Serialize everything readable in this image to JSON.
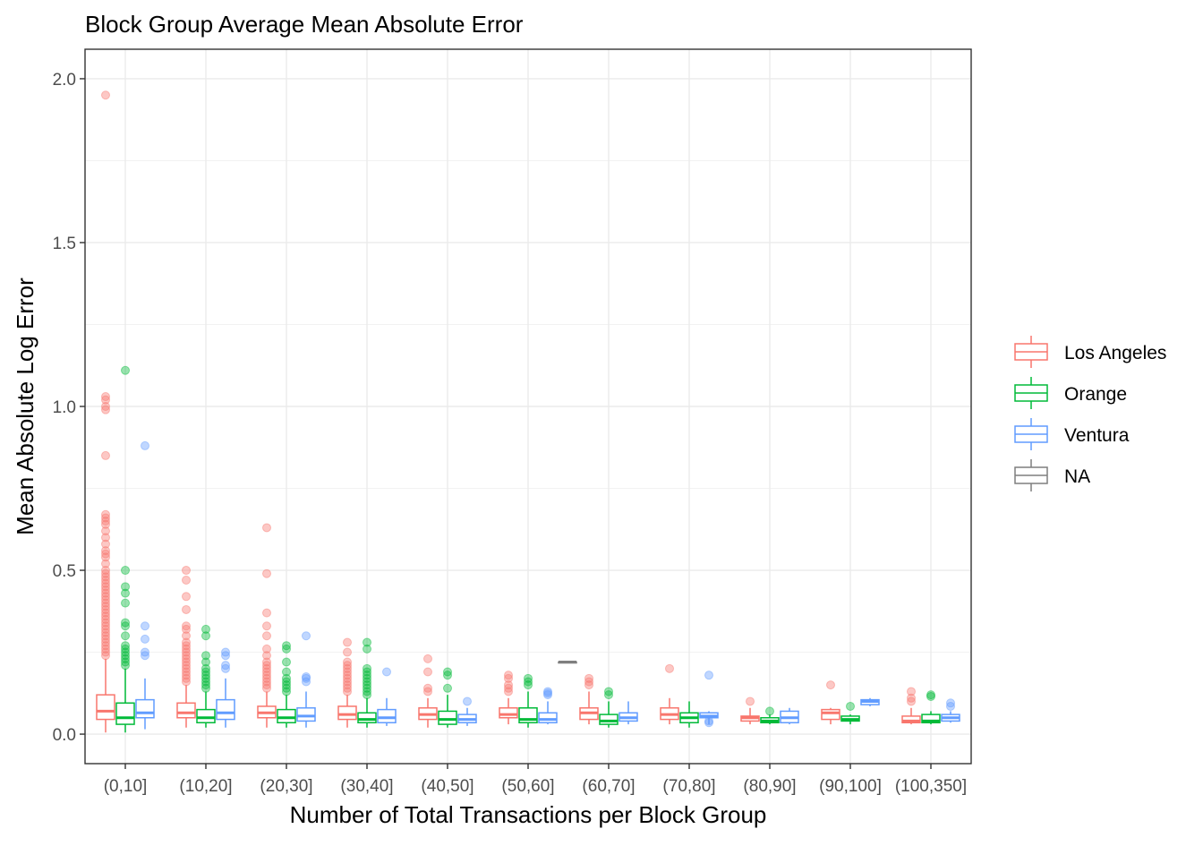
{
  "chart_data": {
    "type": "box",
    "title": "Block Group Average Mean Absolute Error",
    "xlabel": "Number of Total Transactions per Block Group",
    "ylabel": "Mean Absolute Log Error",
    "ylim": [
      -0.09,
      2.09
    ],
    "yticks": [
      "0.0",
      "0.5",
      "1.0",
      "1.5",
      "2.0"
    ],
    "categories": [
      "(0,10]",
      "(10,20]",
      "(20,30]",
      "(30,40]",
      "(40,50]",
      "(50,60]",
      "(60,70]",
      "(70,80]",
      "(80,90]",
      "(90,100]",
      "(100,350]"
    ],
    "grid": true,
    "legend_position": "right",
    "series": [
      {
        "name": "Los Angeles",
        "color": "#F8766D",
        "boxes": [
          {
            "category": "(0,10]",
            "min": 0.005,
            "q1": 0.045,
            "median": 0.07,
            "q3": 0.12,
            "max": 0.23,
            "outliers": [
              1.95,
              1.03,
              1.02,
              1.0,
              0.99,
              0.85,
              0.67,
              0.66,
              0.65,
              0.64,
              0.62,
              0.6,
              0.58,
              0.56,
              0.55,
              0.54,
              0.52,
              0.5,
              0.49,
              0.48,
              0.47,
              0.46,
              0.45,
              0.44,
              0.43,
              0.42,
              0.41,
              0.4,
              0.39,
              0.38,
              0.37,
              0.36,
              0.35,
              0.34,
              0.33,
              0.32,
              0.31,
              0.3,
              0.29,
              0.28,
              0.27,
              0.26,
              0.25,
              0.24
            ]
          },
          {
            "category": "(10,20]",
            "min": 0.02,
            "q1": 0.05,
            "median": 0.065,
            "q3": 0.095,
            "max": 0.15,
            "outliers": [
              0.5,
              0.47,
              0.42,
              0.38,
              0.33,
              0.32,
              0.3,
              0.28,
              0.27,
              0.26,
              0.25,
              0.24,
              0.23,
              0.22,
              0.21,
              0.2,
              0.19,
              0.18,
              0.17,
              0.16
            ]
          },
          {
            "category": "(20,30]",
            "min": 0.02,
            "q1": 0.05,
            "median": 0.065,
            "q3": 0.085,
            "max": 0.13,
            "outliers": [
              0.63,
              0.49,
              0.37,
              0.33,
              0.3,
              0.26,
              0.24,
              0.22,
              0.21,
              0.2,
              0.19,
              0.18,
              0.17,
              0.16,
              0.15,
              0.14
            ]
          },
          {
            "category": "(30,40]",
            "min": 0.02,
            "q1": 0.045,
            "median": 0.06,
            "q3": 0.085,
            "max": 0.12,
            "outliers": [
              0.28,
              0.25,
              0.22,
              0.21,
              0.2,
              0.19,
              0.18,
              0.17,
              0.16,
              0.15,
              0.14,
              0.13
            ]
          },
          {
            "category": "(40,50]",
            "min": 0.02,
            "q1": 0.045,
            "median": 0.06,
            "q3": 0.08,
            "max": 0.11,
            "outliers": [
              0.23,
              0.19,
              0.14,
              0.13
            ]
          },
          {
            "category": "(50,60]",
            "min": 0.03,
            "q1": 0.05,
            "median": 0.06,
            "q3": 0.08,
            "max": 0.11,
            "outliers": [
              0.18,
              0.17,
              0.15,
              0.14,
              0.13
            ]
          },
          {
            "category": "(60,70]",
            "min": 0.03,
            "q1": 0.045,
            "median": 0.065,
            "q3": 0.08,
            "max": 0.13,
            "outliers": [
              0.17,
              0.16,
              0.15
            ]
          },
          {
            "category": "(70,80]",
            "min": 0.03,
            "q1": 0.045,
            "median": 0.06,
            "q3": 0.08,
            "max": 0.11,
            "outliers": [
              0.2
            ]
          },
          {
            "category": "(80,90]",
            "min": 0.03,
            "q1": 0.04,
            "median": 0.05,
            "q3": 0.055,
            "max": 0.08,
            "outliers": [
              0.1
            ]
          },
          {
            "category": "(90,100]",
            "min": 0.03,
            "q1": 0.045,
            "median": 0.065,
            "q3": 0.075,
            "max": 0.08,
            "outliers": [
              0.15
            ]
          },
          {
            "category": "(100,350]",
            "min": 0.03,
            "q1": 0.035,
            "median": 0.04,
            "q3": 0.055,
            "max": 0.08,
            "outliers": [
              0.13,
              0.11,
              0.1
            ]
          }
        ]
      },
      {
        "name": "Orange",
        "color": "#00BA38",
        "boxes": [
          {
            "category": "(0,10]",
            "min": 0.005,
            "q1": 0.03,
            "median": 0.05,
            "q3": 0.095,
            "max": 0.2,
            "outliers": [
              1.11,
              0.5,
              0.45,
              0.43,
              0.4,
              0.34,
              0.33,
              0.3,
              0.27,
              0.26,
              0.25,
              0.24,
              0.23,
              0.22,
              0.21
            ]
          },
          {
            "category": "(10,20]",
            "min": 0.02,
            "q1": 0.035,
            "median": 0.05,
            "q3": 0.075,
            "max": 0.13,
            "outliers": [
              0.32,
              0.3,
              0.24,
              0.22,
              0.2,
              0.19,
              0.18,
              0.17,
              0.16,
              0.15,
              0.14
            ]
          },
          {
            "category": "(20,30]",
            "min": 0.02,
            "q1": 0.035,
            "median": 0.05,
            "q3": 0.075,
            "max": 0.12,
            "outliers": [
              0.27,
              0.26,
              0.22,
              0.19,
              0.17,
              0.16,
              0.15,
              0.14,
              0.13
            ]
          },
          {
            "category": "(30,40]",
            "min": 0.02,
            "q1": 0.035,
            "median": 0.045,
            "q3": 0.065,
            "max": 0.11,
            "outliers": [
              0.28,
              0.26,
              0.2,
              0.19,
              0.18,
              0.17,
              0.16,
              0.15,
              0.14,
              0.13,
              0.12
            ]
          },
          {
            "category": "(40,50]",
            "min": 0.02,
            "q1": 0.03,
            "median": 0.045,
            "q3": 0.07,
            "max": 0.12,
            "outliers": [
              0.19,
              0.18,
              0.14
            ]
          },
          {
            "category": "(50,60]",
            "min": 0.02,
            "q1": 0.035,
            "median": 0.045,
            "q3": 0.08,
            "max": 0.13,
            "outliers": [
              0.17,
              0.16,
              0.15
            ]
          },
          {
            "category": "(60,70]",
            "min": 0.02,
            "q1": 0.03,
            "median": 0.04,
            "q3": 0.06,
            "max": 0.1,
            "outliers": [
              0.13,
              0.12
            ]
          },
          {
            "category": "(70,80]",
            "min": 0.02,
            "q1": 0.035,
            "median": 0.05,
            "q3": 0.065,
            "max": 0.1,
            "outliers": []
          },
          {
            "category": "(80,90]",
            "min": 0.03,
            "q1": 0.035,
            "median": 0.04,
            "q3": 0.05,
            "max": 0.06,
            "outliers": [
              0.07
            ]
          },
          {
            "category": "(90,100]",
            "min": 0.03,
            "q1": 0.04,
            "median": 0.045,
            "q3": 0.055,
            "max": 0.06,
            "outliers": [
              0.085
            ]
          },
          {
            "category": "(100,350]",
            "min": 0.03,
            "q1": 0.035,
            "median": 0.04,
            "q3": 0.06,
            "max": 0.07,
            "outliers": [
              0.12,
              0.115
            ]
          }
        ]
      },
      {
        "name": "Ventura",
        "color": "#619CFF",
        "boxes": [
          {
            "category": "(0,10]",
            "min": 0.015,
            "q1": 0.05,
            "median": 0.065,
            "q3": 0.105,
            "max": 0.17,
            "outliers": [
              0.88,
              0.33,
              0.29,
              0.25,
              0.24
            ]
          },
          {
            "category": "(10,20]",
            "min": 0.02,
            "q1": 0.045,
            "median": 0.065,
            "q3": 0.105,
            "max": 0.17,
            "outliers": [
              0.25,
              0.24,
              0.21,
              0.2
            ]
          },
          {
            "category": "(20,30]",
            "min": 0.02,
            "q1": 0.04,
            "median": 0.055,
            "q3": 0.08,
            "max": 0.13,
            "outliers": [
              0.3,
              0.175,
              0.17,
              0.16
            ]
          },
          {
            "category": "(30,40]",
            "min": 0.025,
            "q1": 0.035,
            "median": 0.05,
            "q3": 0.075,
            "max": 0.11,
            "outliers": [
              0.19
            ]
          },
          {
            "category": "(40,50]",
            "min": 0.025,
            "q1": 0.035,
            "median": 0.045,
            "q3": 0.06,
            "max": 0.08,
            "outliers": [
              0.1
            ]
          },
          {
            "category": "(50,60]",
            "min": 0.03,
            "q1": 0.035,
            "median": 0.045,
            "q3": 0.065,
            "max": 0.1,
            "outliers": [
              0.13,
              0.125,
              0.12
            ]
          },
          {
            "category": "(60,70]",
            "min": 0.03,
            "q1": 0.04,
            "median": 0.05,
            "q3": 0.065,
            "max": 0.1,
            "outliers": []
          },
          {
            "category": "(70,80]",
            "min": 0.03,
            "q1": 0.05,
            "median": 0.055,
            "q3": 0.065,
            "max": 0.07,
            "outliers": [
              0.18,
              0.04,
              0.035
            ]
          },
          {
            "category": "(80,90]",
            "min": 0.03,
            "q1": 0.035,
            "median": 0.05,
            "q3": 0.07,
            "max": 0.08,
            "outliers": []
          },
          {
            "category": "(90,100]",
            "min": 0.085,
            "q1": 0.09,
            "median": 0.1,
            "q3": 0.105,
            "max": 0.11,
            "outliers": []
          },
          {
            "category": "(100,350]",
            "min": 0.035,
            "q1": 0.04,
            "median": 0.05,
            "q3": 0.06,
            "max": 0.07,
            "outliers": [
              0.095,
              0.085
            ]
          }
        ]
      },
      {
        "name": "NA",
        "color": "#7F7F7F",
        "boxes": [
          {
            "category": "(50,60]",
            "min": 0.22,
            "q1": 0.22,
            "median": 0.22,
            "q3": 0.22,
            "max": 0.22,
            "outliers": []
          }
        ]
      }
    ]
  }
}
